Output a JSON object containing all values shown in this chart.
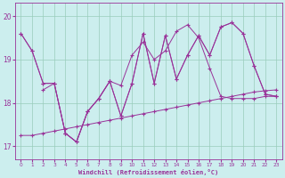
{
  "xlabel": "Windchill (Refroidissement éolien,°C)",
  "bg_color": "#cceeee",
  "line_color": "#993399",
  "grid_color": "#99ccbb",
  "xlim": [
    -0.5,
    23.5
  ],
  "ylim": [
    16.7,
    20.3
  ],
  "yticks": [
    17,
    18,
    19,
    20
  ],
  "xticks": [
    0,
    1,
    2,
    3,
    4,
    5,
    6,
    7,
    8,
    9,
    10,
    11,
    12,
    13,
    14,
    15,
    16,
    17,
    18,
    19,
    20,
    21,
    22,
    23
  ],
  "s1_x": [
    0,
    1,
    2,
    3,
    4,
    5,
    6,
    7,
    8,
    9,
    10,
    11,
    12,
    13,
    14,
    15,
    16,
    17,
    18,
    19,
    20,
    21,
    22,
    23
  ],
  "s1_y": [
    19.6,
    19.2,
    18.45,
    18.45,
    17.3,
    17.1,
    17.8,
    18.1,
    18.5,
    17.7,
    18.45,
    19.6,
    18.45,
    19.55,
    18.55,
    19.1,
    19.55,
    19.1,
    19.75,
    19.85,
    19.6,
    18.85,
    18.2,
    18.15
  ],
  "s2_x": [
    0,
    1,
    2,
    3,
    4,
    5,
    6,
    7,
    8,
    9,
    10,
    11,
    12,
    13,
    14,
    15,
    16,
    17,
    18,
    19,
    20,
    21,
    22,
    23
  ],
  "s2_y": [
    19.6,
    19.2,
    18.45,
    18.45,
    17.3,
    17.1,
    17.8,
    18.1,
    18.5,
    17.7,
    18.45,
    19.6,
    18.45,
    19.55,
    18.55,
    19.1,
    19.55,
    19.1,
    19.75,
    19.85,
    19.6,
    18.85,
    18.2,
    18.15
  ],
  "s3_x": [
    0,
    1,
    2,
    3,
    4,
    5,
    6,
    7,
    8,
    9,
    10,
    11,
    12,
    13,
    14,
    15,
    16,
    17,
    18,
    19,
    20,
    21,
    22,
    23
  ],
  "s3_y": [
    17.25,
    17.25,
    17.3,
    17.35,
    17.4,
    17.45,
    17.5,
    17.55,
    17.6,
    17.65,
    17.7,
    17.75,
    17.8,
    17.85,
    17.9,
    17.95,
    18.0,
    18.05,
    18.1,
    18.15,
    18.2,
    18.25,
    18.28,
    18.3
  ],
  "s4_x": [
    2,
    3,
    4,
    5,
    6,
    7,
    8,
    9,
    10,
    11,
    12,
    13,
    14,
    15,
    16,
    17,
    18,
    19,
    20,
    21,
    22,
    23
  ],
  "s4_y": [
    18.3,
    18.45,
    17.3,
    17.1,
    17.8,
    18.1,
    18.5,
    18.4,
    19.1,
    19.4,
    19.0,
    19.2,
    19.65,
    19.8,
    19.5,
    18.8,
    18.15,
    18.1,
    18.1,
    18.1,
    18.15,
    18.15
  ]
}
